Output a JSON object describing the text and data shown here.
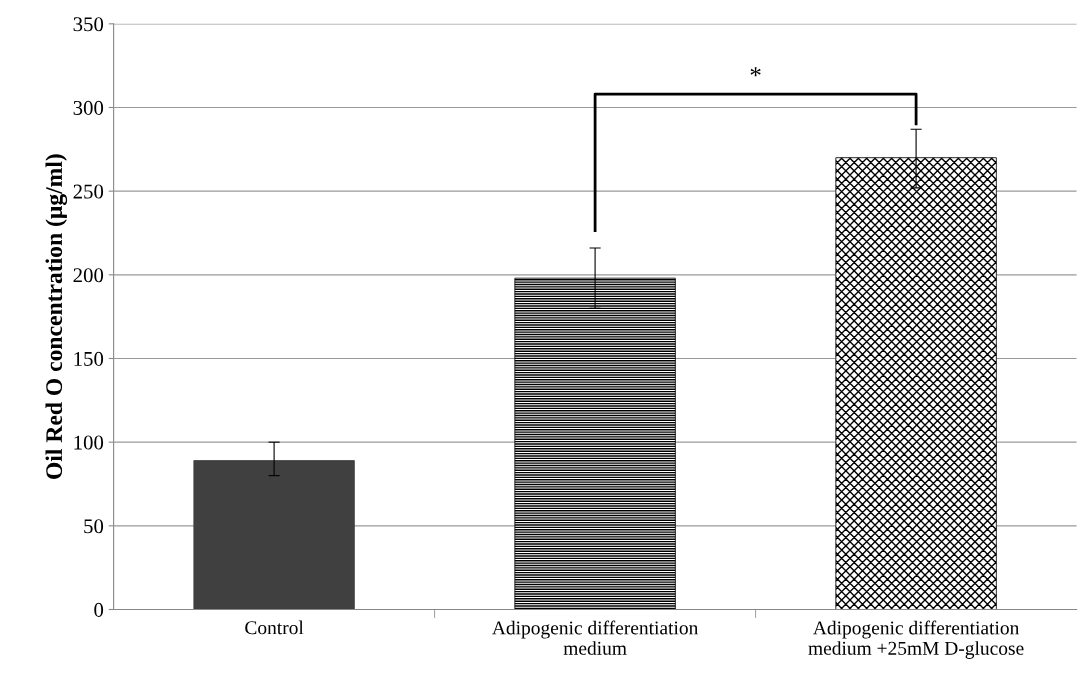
{
  "chart_data": {
    "type": "bar",
    "ylabel": "Oil Red O concentration (μg/ml)",
    "categories": [
      "Control",
      "Adipogenic differentiation\nmedium",
      "Adipogenic differentiation\nmedium +25mM D-glucose"
    ],
    "values": [
      89,
      198,
      270
    ],
    "errors": [
      [
        80,
        100
      ],
      [
        180,
        216
      ],
      [
        252,
        287
      ]
    ],
    "colors": [
      "#404040",
      "#000000",
      "#000000"
    ],
    "ylim": [
      0,
      350
    ],
    "yticks": [
      0,
      50,
      100,
      150,
      200,
      250,
      300,
      350
    ],
    "grid": "y",
    "annotations": [
      "*"
    ]
  }
}
